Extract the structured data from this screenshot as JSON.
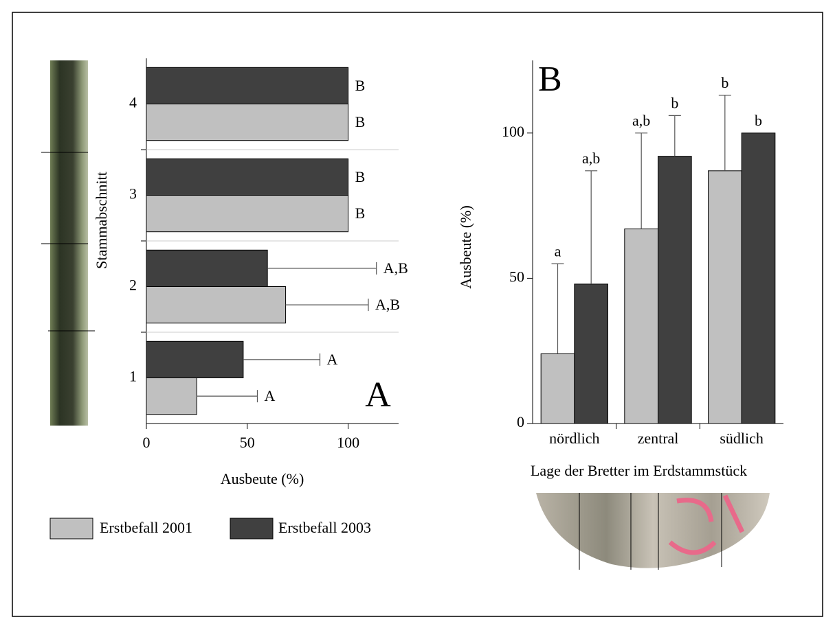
{
  "chart_data": [
    {
      "type": "bar",
      "orientation": "horizontal",
      "panel_label": "A",
      "xlabel": "Ausbeute (%)",
      "ylabel": "Stammabschnitt",
      "categories": [
        "1",
        "2",
        "3",
        "4"
      ],
      "series": [
        {
          "name": "Erstbefall 2001",
          "color": "#c0c0c0",
          "values": [
            25,
            69,
            100,
            100
          ],
          "errors": [
            30,
            41,
            null,
            null
          ],
          "letters": [
            "A",
            "A,B",
            "B",
            "B"
          ]
        },
        {
          "name": "Erstbefall 2003",
          "color": "#404040",
          "values": [
            48,
            60,
            100,
            100
          ],
          "errors": [
            38,
            54,
            null,
            null
          ],
          "letters": [
            "A",
            "A,B",
            "B",
            "B"
          ]
        }
      ],
      "xlim": [
        0,
        125
      ],
      "xticks": [
        0,
        50,
        100
      ]
    },
    {
      "type": "bar",
      "orientation": "vertical",
      "panel_label": "B",
      "xlabel": "Lage der Bretter im Erdstammstück",
      "ylabel": "Ausbeute (%)",
      "categories": [
        "nördlich",
        "zentral",
        "südlich"
      ],
      "series": [
        {
          "color": "#c0c0c0",
          "values": [
            24,
            67,
            87
          ],
          "errors": [
            31,
            33,
            26
          ],
          "letters": [
            "a",
            "a,b",
            "b"
          ]
        },
        {
          "color": "#404040",
          "values": [
            48,
            92,
            100
          ],
          "errors": [
            39,
            14,
            null
          ],
          "letters": [
            "a,b",
            "b",
            "b"
          ]
        }
      ],
      "ylim": [
        0,
        125
      ],
      "yticks": [
        0,
        50,
        100
      ]
    }
  ]
}
